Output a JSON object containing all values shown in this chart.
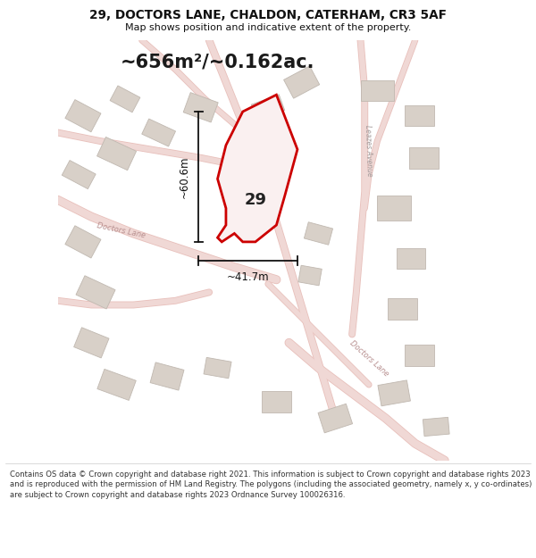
{
  "title": "29, DOCTORS LANE, CHALDON, CATERHAM, CR3 5AF",
  "subtitle": "Map shows position and indicative extent of the property.",
  "area_text": "~656m²/~0.162ac.",
  "dim_width": "~41.7m",
  "dim_height": "~60.6m",
  "number_label": "29",
  "footer_text": "Contains OS data © Crown copyright and database right 2021. This information is subject to Crown copyright and database rights 2023 and is reproduced with the permission of HM Land Registry. The polygons (including the associated geometry, namely x, y co-ordinates) are subject to Crown copyright and database rights 2023 Ordnance Survey 100026316.",
  "map_bg_color": "#ffffff",
  "road_color": "#f0d8d5",
  "road_edge_color": "#e8c0bb",
  "plot_fill_color": "#faf0f0",
  "plot_edge_color": "#cc0000",
  "building_color": "#d8d0c8",
  "building_edge_color": "#c0b8b0",
  "title_color": "#111111",
  "dim_line_color": "#111111",
  "road_label_color": "#b89090",
  "leazes_label_color": "#a09898"
}
